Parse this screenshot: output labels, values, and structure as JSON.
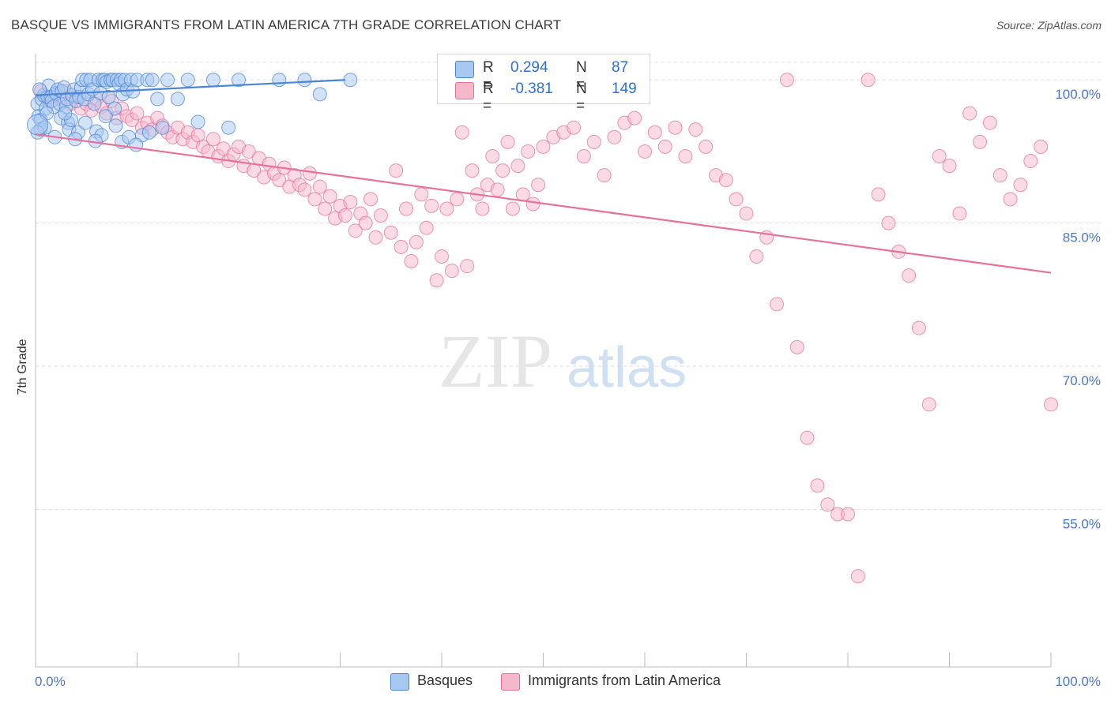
{
  "title": "BASQUE VS IMMIGRANTS FROM LATIN AMERICA 7TH GRADE CORRELATION CHART",
  "source": "Source: ZipAtlas.com",
  "watermark": {
    "zip": "ZIP",
    "atlas": "atlas"
  },
  "colors": {
    "blue": "#4a86d8",
    "blue_fill": "#a8c8f0",
    "pink": "#e8709a",
    "pink_fill": "#f5b8cb",
    "tick": "#4a78c8",
    "grid": "#dddddd"
  },
  "legend": {
    "rows": [
      {
        "r_label": "R =",
        "r_value": "0.294",
        "n_label": "N =",
        "n_value": "87"
      },
      {
        "r_label": "R =",
        "r_value": "-0.381",
        "n_label": "N =",
        "n_value": "149"
      }
    ]
  },
  "bottom_legend": {
    "series1": "Basques",
    "series2": "Immigrants from Latin America"
  },
  "chart_data": {
    "type": "scatter",
    "title": "BASQUE VS IMMIGRANTS FROM LATIN AMERICA 7TH GRADE CORRELATION CHART",
    "xlabel": "",
    "ylabel": "7th Grade",
    "xlim": [
      0,
      100
    ],
    "ylim": [
      38.5,
      102.5
    ],
    "x_ticks": [
      "0.0%",
      "100.0%"
    ],
    "y_ticks": [
      {
        "value": 100,
        "label": "100.0%"
      },
      {
        "value": 85,
        "label": "85.0%"
      },
      {
        "value": 70,
        "label": "70.0%"
      },
      {
        "value": 55,
        "label": "55.0%"
      }
    ],
    "grid": true,
    "legend_position": "top-center",
    "series": [
      {
        "name": "Basques",
        "color": "#4a86d8",
        "trend": {
          "x": [
            0,
            30.5
          ],
          "y": [
            98.4,
            100.0
          ]
        },
        "points": [
          [
            0.2,
            97.5
          ],
          [
            0.3,
            96.2
          ],
          [
            0.5,
            95.8
          ],
          [
            0.5,
            94.8
          ],
          [
            0.6,
            98.0
          ],
          [
            0.8,
            98.4
          ],
          [
            1.0,
            97.0
          ],
          [
            1.2,
            98.2
          ],
          [
            1.3,
            99.4
          ],
          [
            1.5,
            98.2
          ],
          [
            1.6,
            97.8
          ],
          [
            1.8,
            97.2
          ],
          [
            2.0,
            98.6
          ],
          [
            2.2,
            99.0
          ],
          [
            2.4,
            97.5
          ],
          [
            2.5,
            96.0
          ],
          [
            2.6,
            98.8
          ],
          [
            2.8,
            99.2
          ],
          [
            3.0,
            97.2
          ],
          [
            3.1,
            98.0
          ],
          [
            3.2,
            95.5
          ],
          [
            3.3,
            94.8
          ],
          [
            3.5,
            95.8
          ],
          [
            3.6,
            98.4
          ],
          [
            3.8,
            99.0
          ],
          [
            4.0,
            97.8
          ],
          [
            4.2,
            94.5
          ],
          [
            4.3,
            98.2
          ],
          [
            4.5,
            99.2
          ],
          [
            4.6,
            100.0
          ],
          [
            4.8,
            98.0
          ],
          [
            5.0,
            100.0
          ],
          [
            5.2,
            98.5
          ],
          [
            5.4,
            100.0
          ],
          [
            5.6,
            99.0
          ],
          [
            5.8,
            97.5
          ],
          [
            6.0,
            94.6
          ],
          [
            6.2,
            100.0
          ],
          [
            6.4,
            98.6
          ],
          [
            6.5,
            94.2
          ],
          [
            6.6,
            100.0
          ],
          [
            6.8,
            100.0
          ],
          [
            7.0,
            99.8
          ],
          [
            7.2,
            98.2
          ],
          [
            7.4,
            100.0
          ],
          [
            7.6,
            100.0
          ],
          [
            7.8,
            97.0
          ],
          [
            8.0,
            100.0
          ],
          [
            8.2,
            99.6
          ],
          [
            8.4,
            100.0
          ],
          [
            8.5,
            93.5
          ],
          [
            8.6,
            98.5
          ],
          [
            8.8,
            100.0
          ],
          [
            9.0,
            99.0
          ],
          [
            9.2,
            94.0
          ],
          [
            9.4,
            100.0
          ],
          [
            9.6,
            98.8
          ],
          [
            10.0,
            100.0
          ],
          [
            10.5,
            94.2
          ],
          [
            11.0,
            100.0
          ],
          [
            11.5,
            100.0
          ],
          [
            12.0,
            98.0
          ],
          [
            13.0,
            100.0
          ],
          [
            14.0,
            98.0
          ],
          [
            15.0,
            100.0
          ],
          [
            16.0,
            95.6
          ],
          [
            17.5,
            100.0
          ],
          [
            19.0,
            95.0
          ],
          [
            20.0,
            100.0
          ],
          [
            24.0,
            100.0
          ],
          [
            26.5,
            100.0
          ],
          [
            28.0,
            98.5
          ],
          [
            31.0,
            100.0
          ],
          [
            0.4,
            99.0
          ],
          [
            1.1,
            96.5
          ],
          [
            2.9,
            96.5
          ],
          [
            0.9,
            95.0
          ],
          [
            4.9,
            95.5
          ],
          [
            6.9,
            96.2
          ],
          [
            7.9,
            95.2
          ],
          [
            0.2,
            94.5
          ],
          [
            1.9,
            94.0
          ],
          [
            3.9,
            93.8
          ],
          [
            5.9,
            93.6
          ],
          [
            9.9,
            93.2
          ],
          [
            11.2,
            94.5
          ],
          [
            12.5,
            95.0
          ]
        ]
      },
      {
        "name": "Immigrants from Latin America",
        "color": "#e8709a",
        "trend": {
          "x": [
            0,
            100
          ],
          "y": [
            94.3,
            79.8
          ]
        },
        "points": [
          [
            0.5,
            98.8
          ],
          [
            1.0,
            98.2
          ],
          [
            1.5,
            97.8
          ],
          [
            2.0,
            98.5
          ],
          [
            2.5,
            98.0
          ],
          [
            3.0,
            98.8
          ],
          [
            3.5,
            97.5
          ],
          [
            4.0,
            98.2
          ],
          [
            4.5,
            97.0
          ],
          [
            5.0,
            97.5
          ],
          [
            5.5,
            96.8
          ],
          [
            6.0,
            98.0
          ],
          [
            6.5,
            97.2
          ],
          [
            7.0,
            96.5
          ],
          [
            7.5,
            97.8
          ],
          [
            8.0,
            96.0
          ],
          [
            8.5,
            97.0
          ],
          [
            9.0,
            96.2
          ],
          [
            9.5,
            95.8
          ],
          [
            10.0,
            96.5
          ],
          [
            10.5,
            95.0
          ],
          [
            11.0,
            95.5
          ],
          [
            11.5,
            94.8
          ],
          [
            12.0,
            96.0
          ],
          [
            12.5,
            95.2
          ],
          [
            13.0,
            94.5
          ],
          [
            13.5,
            94.0
          ],
          [
            14.0,
            95.0
          ],
          [
            14.5,
            93.8
          ],
          [
            15.0,
            94.5
          ],
          [
            15.5,
            93.5
          ],
          [
            16.0,
            94.2
          ],
          [
            16.5,
            93.0
          ],
          [
            17.0,
            92.5
          ],
          [
            17.5,
            93.8
          ],
          [
            18.0,
            92.0
          ],
          [
            18.5,
            92.8
          ],
          [
            19.0,
            91.5
          ],
          [
            19.5,
            92.2
          ],
          [
            20.0,
            93.0
          ],
          [
            20.5,
            91.0
          ],
          [
            21.0,
            92.5
          ],
          [
            21.5,
            90.5
          ],
          [
            22.0,
            91.8
          ],
          [
            22.5,
            89.8
          ],
          [
            23.0,
            91.2
          ],
          [
            23.5,
            90.2
          ],
          [
            24.0,
            89.5
          ],
          [
            24.5,
            90.8
          ],
          [
            25.0,
            88.8
          ],
          [
            25.5,
            90.0
          ],
          [
            26.0,
            89.0
          ],
          [
            26.5,
            88.5
          ],
          [
            27.0,
            90.2
          ],
          [
            27.5,
            87.5
          ],
          [
            28.0,
            88.8
          ],
          [
            28.5,
            86.5
          ],
          [
            29.0,
            87.8
          ],
          [
            29.5,
            85.5
          ],
          [
            30.0,
            86.8
          ],
          [
            30.5,
            85.8
          ],
          [
            31.0,
            87.2
          ],
          [
            31.5,
            84.2
          ],
          [
            32.0,
            86.0
          ],
          [
            32.5,
            85.0
          ],
          [
            33.0,
            87.5
          ],
          [
            33.5,
            83.5
          ],
          [
            34.0,
            85.8
          ],
          [
            35.0,
            84.0
          ],
          [
            35.5,
            90.5
          ],
          [
            36.0,
            82.5
          ],
          [
            36.5,
            86.5
          ],
          [
            37.0,
            81.0
          ],
          [
            37.5,
            83.0
          ],
          [
            38.0,
            88.0
          ],
          [
            38.5,
            84.5
          ],
          [
            39.0,
            86.8
          ],
          [
            39.5,
            79.0
          ],
          [
            40.0,
            81.5
          ],
          [
            40.5,
            86.5
          ],
          [
            41.0,
            80.0
          ],
          [
            41.5,
            87.5
          ],
          [
            42.0,
            94.5
          ],
          [
            42.5,
            80.5
          ],
          [
            43.0,
            90.5
          ],
          [
            43.5,
            88.0
          ],
          [
            44.0,
            86.5
          ],
          [
            44.5,
            89.0
          ],
          [
            45.0,
            92.0
          ],
          [
            45.5,
            88.5
          ],
          [
            46.0,
            90.5
          ],
          [
            46.5,
            93.5
          ],
          [
            47.0,
            86.5
          ],
          [
            47.5,
            91.0
          ],
          [
            48.0,
            88.0
          ],
          [
            48.5,
            92.5
          ],
          [
            49.0,
            87.0
          ],
          [
            49.5,
            89.0
          ],
          [
            50.0,
            93.0
          ],
          [
            51.0,
            94.0
          ],
          [
            52.0,
            94.5
          ],
          [
            53.0,
            95.0
          ],
          [
            54.0,
            92.0
          ],
          [
            55.0,
            93.5
          ],
          [
            56.0,
            90.0
          ],
          [
            57.0,
            94.0
          ],
          [
            58.0,
            95.5
          ],
          [
            59.0,
            96.0
          ],
          [
            60.0,
            92.5
          ],
          [
            61.0,
            94.5
          ],
          [
            62.0,
            93.0
          ],
          [
            63.0,
            95.0
          ],
          [
            64.0,
            92.0
          ],
          [
            65.0,
            94.8
          ],
          [
            66.0,
            93.0
          ],
          [
            67.0,
            90.0
          ],
          [
            68.0,
            89.5
          ],
          [
            69.0,
            87.5
          ],
          [
            70.0,
            86.0
          ],
          [
            71.0,
            81.5
          ],
          [
            72.0,
            83.5
          ],
          [
            73.0,
            76.5
          ],
          [
            74.0,
            100.0
          ],
          [
            75.0,
            72.0
          ],
          [
            76.0,
            62.5
          ],
          [
            77.0,
            57.5
          ],
          [
            78.0,
            55.5
          ],
          [
            79.0,
            54.5
          ],
          [
            80.0,
            54.5
          ],
          [
            81.0,
            48.0
          ],
          [
            82.0,
            100.0
          ],
          [
            83.0,
            88.0
          ],
          [
            84.0,
            85.0
          ],
          [
            85.0,
            82.0
          ],
          [
            86.0,
            79.5
          ],
          [
            87.0,
            74.0
          ],
          [
            88.0,
            66.0
          ],
          [
            89.0,
            92.0
          ],
          [
            90.0,
            91.0
          ],
          [
            91.0,
            86.0
          ],
          [
            92.0,
            96.5
          ],
          [
            93.0,
            93.5
          ],
          [
            94.0,
            95.5
          ],
          [
            95.0,
            90.0
          ],
          [
            96.0,
            87.5
          ],
          [
            97.0,
            89.0
          ],
          [
            98.0,
            91.5
          ],
          [
            99.0,
            93.0
          ],
          [
            100.0,
            66.0
          ]
        ]
      }
    ]
  }
}
